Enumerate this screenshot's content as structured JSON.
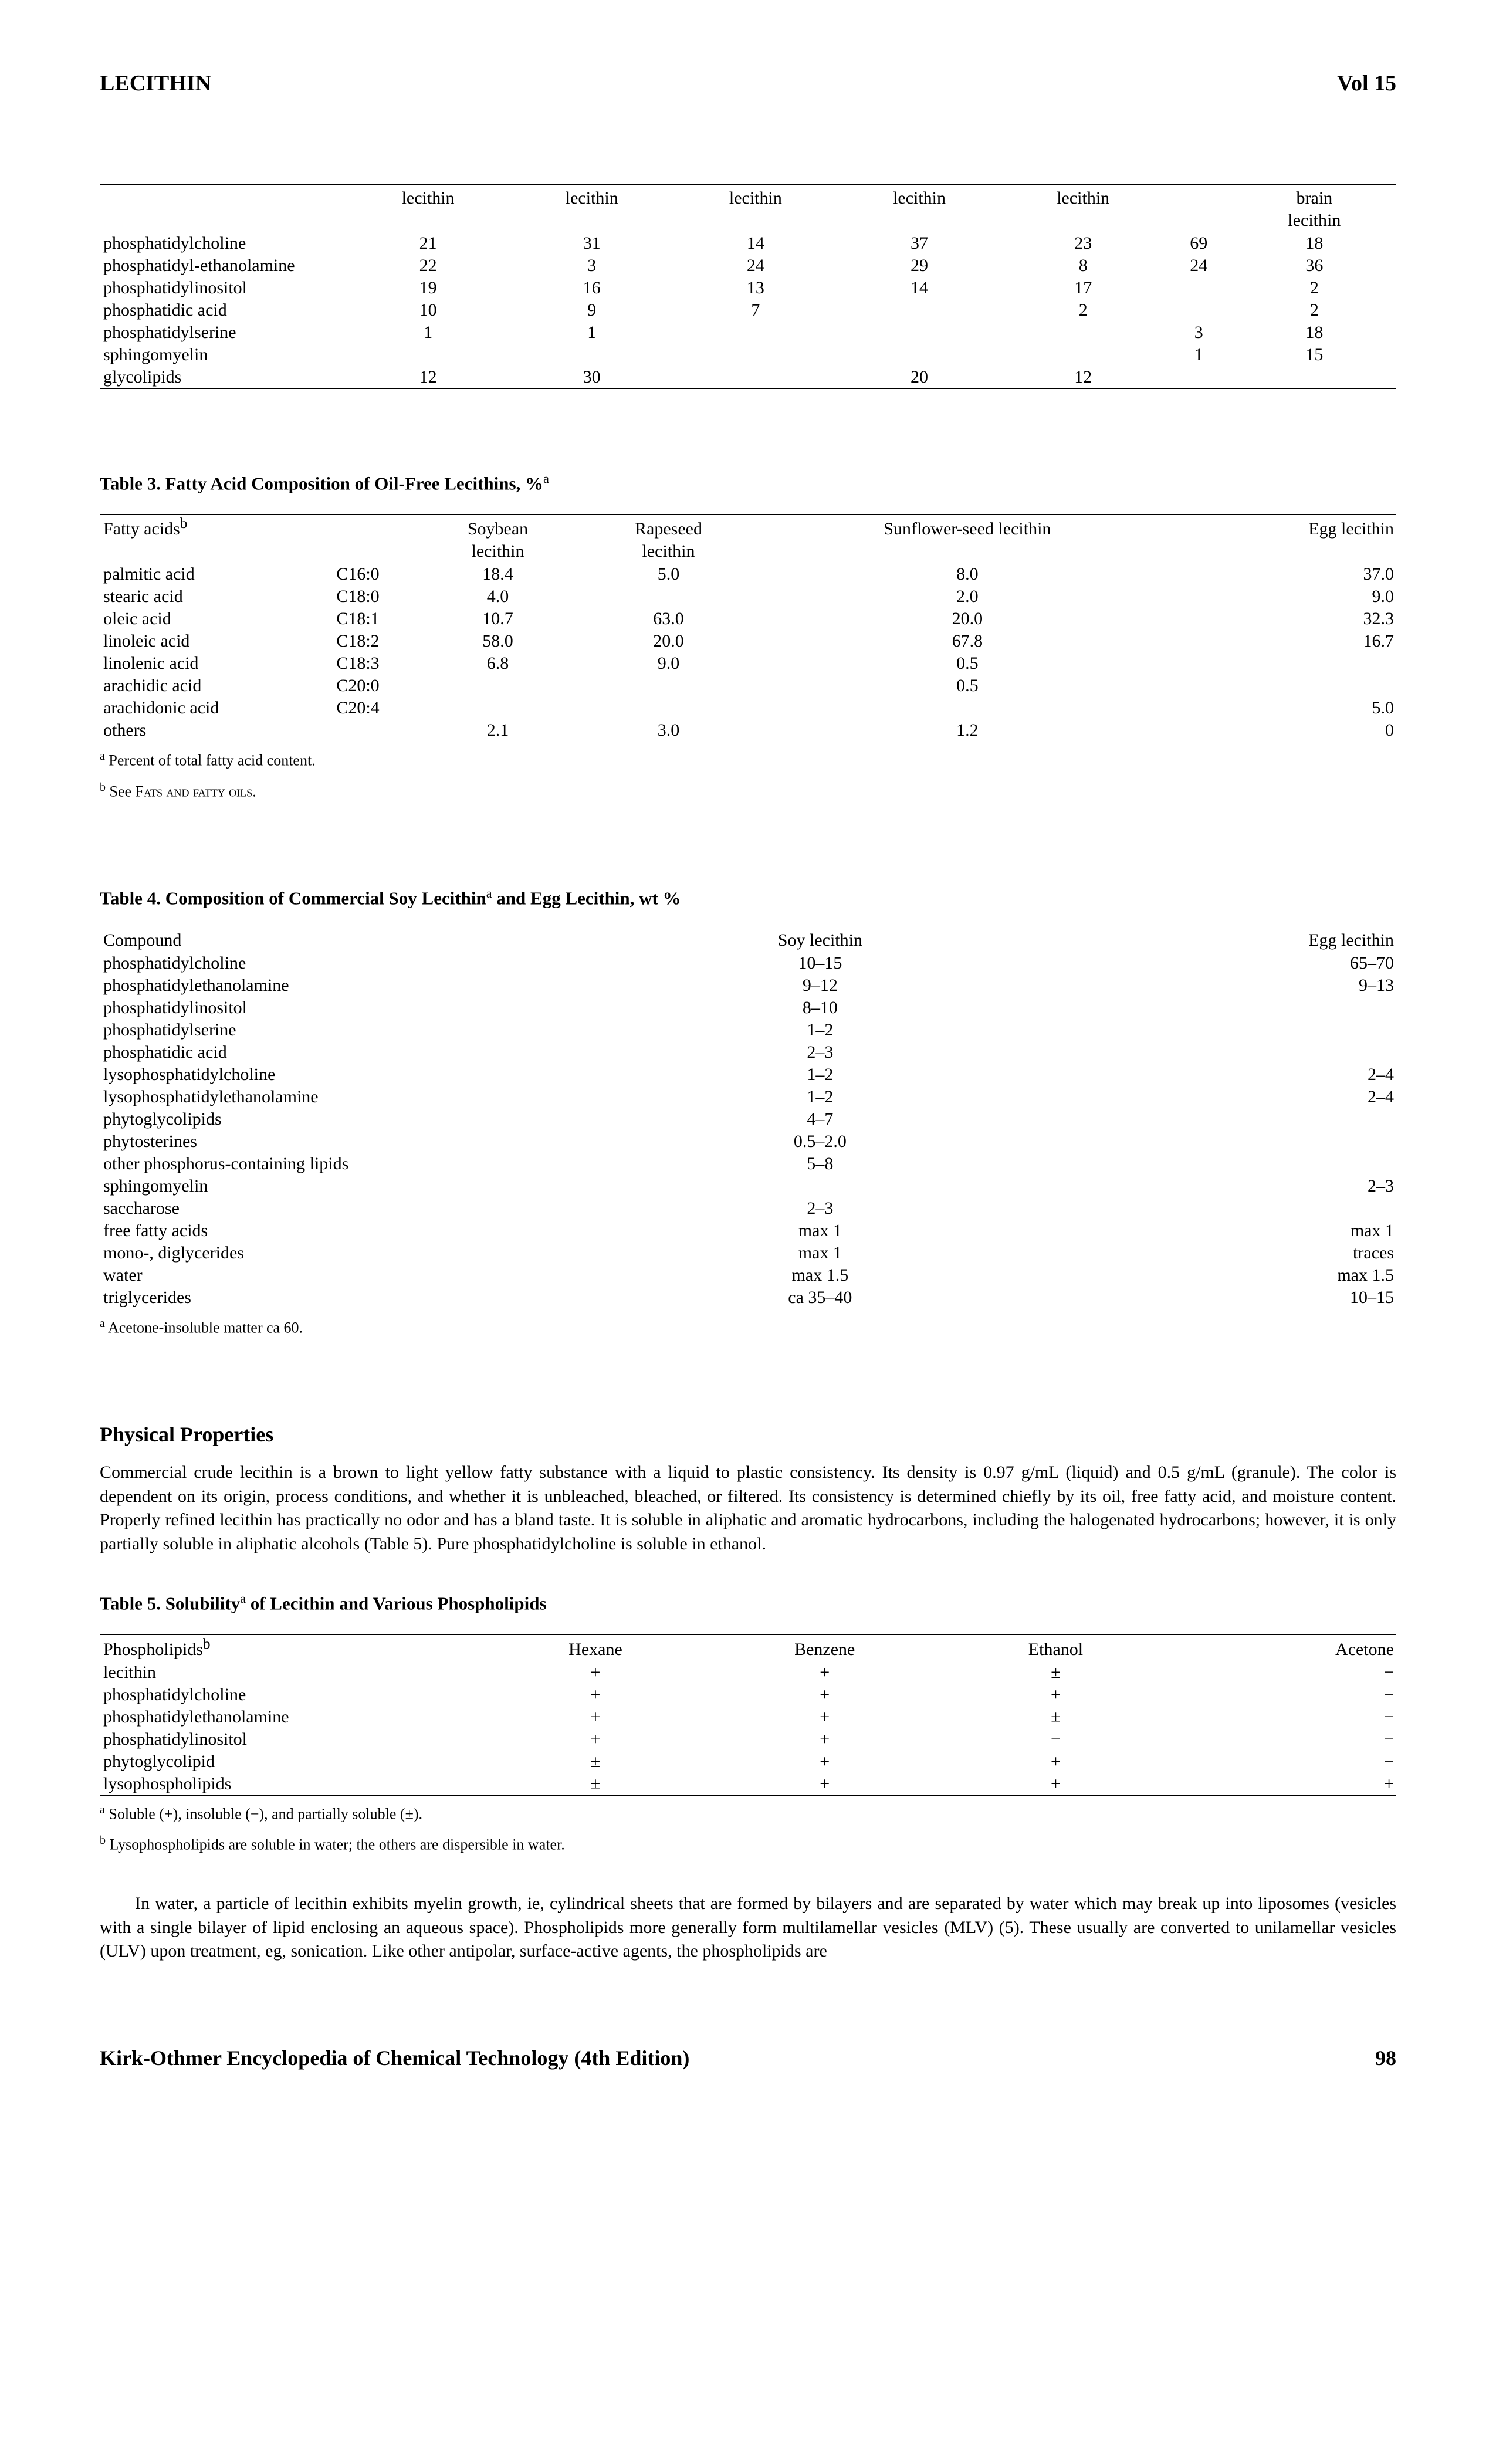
{
  "header": {
    "title": "LECITHIN",
    "volume": "Vol 15"
  },
  "table1": {
    "headers": [
      "",
      "lecithin",
      "lecithin",
      "lecithin",
      "lecithin",
      "lecithin",
      "",
      "brain"
    ],
    "headers2": [
      "",
      "",
      "",
      "",
      "",
      "",
      "",
      "lecithin"
    ],
    "rows": [
      [
        "phosphatidylcholine",
        "21",
        "31",
        "14",
        "37",
        "23",
        "69",
        "18"
      ],
      [
        "phosphatidyl-ethanolamine",
        "22",
        "3",
        "24",
        "29",
        "8",
        "24",
        "36"
      ],
      [
        "phosphatidylinositol",
        "19",
        "16",
        "13",
        "14",
        "17",
        "",
        "2"
      ],
      [
        "phosphatidic acid",
        "10",
        "9",
        "7",
        "",
        "2",
        "",
        "2"
      ],
      [
        "phosphatidylserine",
        "1",
        "1",
        "",
        "",
        "",
        "3",
        "18"
      ],
      [
        "sphingomyelin",
        "",
        "",
        "",
        "",
        "",
        "1",
        "15"
      ],
      [
        "glycolipids",
        "12",
        "30",
        "",
        "20",
        "12",
        "",
        ""
      ]
    ]
  },
  "table3": {
    "title": "Table 3. Fatty Acid Composition of Oil-Free Lecithins, %",
    "title_sup": "a",
    "headers1": [
      "Fatty acids",
      "",
      "Soybean",
      "Rapeseed",
      "Sunflower-seed lecithin",
      "Egg lecithin"
    ],
    "headers1_sup": "b",
    "headers2": [
      "",
      "",
      "lecithin",
      "lecithin",
      "",
      ""
    ],
    "rows": [
      [
        "palmitic acid",
        "C16:0",
        "18.4",
        "5.0",
        "8.0",
        "37.0"
      ],
      [
        "stearic acid",
        "C18:0",
        "4.0",
        "",
        "2.0",
        "9.0"
      ],
      [
        "oleic acid",
        "C18:1",
        "10.7",
        "63.0",
        "20.0",
        "32.3"
      ],
      [
        "linoleic acid",
        "C18:2",
        "58.0",
        "20.0",
        "67.8",
        "16.7"
      ],
      [
        "linolenic acid",
        "C18:3",
        "6.8",
        "9.0",
        "0.5",
        ""
      ],
      [
        "arachidic acid",
        "C20:0",
        "",
        "",
        "0.5",
        ""
      ],
      [
        "arachidonic acid",
        "C20:4",
        "",
        "",
        "",
        "5.0"
      ],
      [
        "others",
        "",
        "2.1",
        "3.0",
        "1.2",
        "0"
      ]
    ],
    "footnote_a": " Percent of total fatty acid content.",
    "footnote_b_pre": " See ",
    "footnote_b_sc": "Fats and fatty oils"
  },
  "table4": {
    "title_pre": "Table 4. Composition of Commercial Soy Lecithin",
    "title_sup": "a",
    "title_post": " and Egg Lecithin, wt %",
    "headers": [
      "Compound",
      "Soy lecithin",
      "Egg lecithin"
    ],
    "rows": [
      [
        "phosphatidylcholine",
        "10–15",
        "65–70"
      ],
      [
        "phosphatidylethanolamine",
        "9–12",
        "9–13"
      ],
      [
        "phosphatidylinositol",
        "8–10",
        ""
      ],
      [
        "phosphatidylserine",
        "1–2",
        ""
      ],
      [
        "phosphatidic acid",
        "2–3",
        ""
      ],
      [
        "lysophosphatidylcholine",
        "1–2",
        "2–4"
      ],
      [
        "lysophosphatidylethanolamine",
        "1–2",
        "2–4"
      ],
      [
        "phytoglycolipids",
        "4–7",
        ""
      ],
      [
        "phytosterines",
        "0.5–2.0",
        ""
      ],
      [
        "other phosphorus-containing lipids",
        "5–8",
        ""
      ],
      [
        "sphingomyelin",
        "",
        "2–3"
      ],
      [
        "saccharose",
        "2–3",
        ""
      ],
      [
        "free fatty acids",
        "max 1",
        "max 1"
      ],
      [
        "mono-, diglycerides",
        "max 1",
        "traces"
      ],
      [
        "water",
        "max 1.5",
        "max 1.5"
      ],
      [
        "triglycerides",
        "ca 35–40",
        "10–15"
      ]
    ],
    "footnote_a": " Acetone-insoluble matter ca 60."
  },
  "section1": {
    "heading": "Physical Properties",
    "paragraph": "Commercial crude lecithin is a brown to light yellow fatty substance with a liquid to plastic consistency. Its density is 0.97 g/mL (liquid) and 0.5 g/mL (granule). The color is dependent on its origin, process conditions, and whether it is unbleached, bleached, or filtered. Its consistency is determined chiefly by its oil, free fatty acid, and moisture content. Properly refined lecithin has practically no odor and has a bland taste. It is soluble in aliphatic and aromatic hydrocarbons, including the halogenated hydrocarbons; however, it is only partially soluble in aliphatic alcohols (Table 5). Pure phosphatidylcholine is soluble in ethanol."
  },
  "table5": {
    "title_pre": "Table 5. Solubility",
    "title_sup": "a",
    "title_post": " of Lecithin and Various Phospholipids",
    "headers": [
      "Phospholipids",
      "Hexane",
      "Benzene",
      "Ethanol",
      "Acetone"
    ],
    "headers_sup": "b",
    "rows": [
      [
        "lecithin",
        "+",
        "+",
        "±",
        "−"
      ],
      [
        "phosphatidylcholine",
        "+",
        "+",
        "+",
        "−"
      ],
      [
        "phosphatidylethanolamine",
        "+",
        "+",
        "±",
        "−"
      ],
      [
        "phosphatidylinositol",
        "+",
        "+",
        "−",
        "−"
      ],
      [
        "phytoglycolipid",
        "±",
        "+",
        "+",
        "−"
      ],
      [
        "lysophospholipids",
        "±",
        "+",
        "+",
        "+"
      ]
    ],
    "footnote_a": " Soluble (+), insoluble (−), and partially soluble (±).",
    "footnote_b": " Lysophospholipids are soluble in water; the others are dispersible in water."
  },
  "section2": {
    "paragraph": "In water, a particle of lecithin exhibits myelin growth, ie, cylindrical sheets that are formed by bilayers and are separated by water which may break up into liposomes (vesicles with a single bilayer of lipid enclosing an aqueous space). Phospholipids more generally form multilamellar vesicles (MLV) (5). These usually are converted to unilamellar vesicles (ULV) upon treatment, eg, sonication. Like other antipolar, surface-active agents, the phospholipids are"
  },
  "footer": {
    "source": "Kirk-Othmer Encyclopedia of Chemical Technology (4th Edition)",
    "page": "98"
  }
}
